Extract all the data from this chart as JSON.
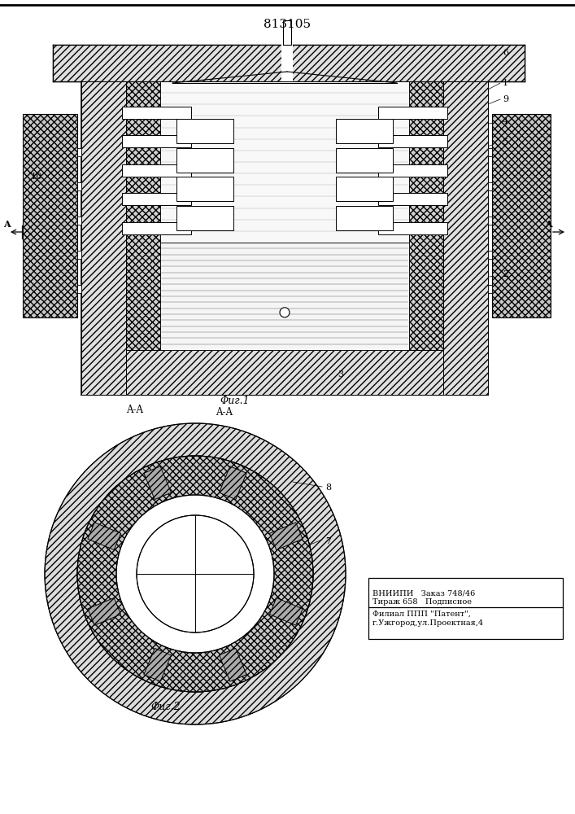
{
  "patent_number": "813105",
  "fig1_label": "Φиг.1",
  "fig2_label": "Φиг.2",
  "aa_label": "A-A",
  "bg_color": "#ffffff"
}
